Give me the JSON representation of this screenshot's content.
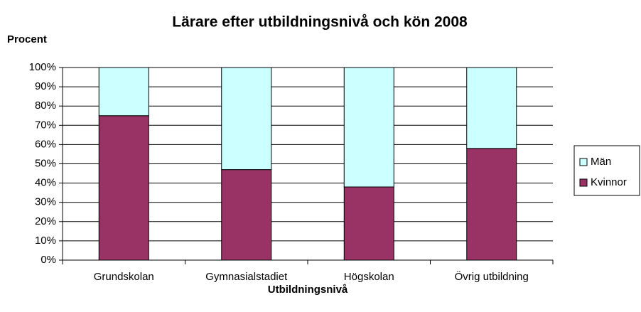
{
  "chart_data": {
    "type": "stacked_bar",
    "title": "Lärare efter utbildningsnivå och kön 2008",
    "y_label": "Procent",
    "x_label": "Utbildningsnivå",
    "categories": [
      "Grundskolan",
      "Gymnasialstadiet",
      "Högskolan",
      "Övrig utbildning"
    ],
    "series": [
      {
        "name": "Kvinnor",
        "color": "#993366",
        "values": [
          75,
          47,
          38,
          58
        ]
      },
      {
        "name": "Män",
        "color": "#ccffff",
        "values": [
          25,
          53,
          62,
          42
        ]
      }
    ],
    "ylim": [
      0,
      100
    ],
    "yticks": [
      {
        "value": 0,
        "label": "0%"
      },
      {
        "value": 10,
        "label": "10%"
      },
      {
        "value": 20,
        "label": "20%"
      },
      {
        "value": 30,
        "label": "30%"
      },
      {
        "value": 40,
        "label": "40%"
      },
      {
        "value": 50,
        "label": "50%"
      },
      {
        "value": 60,
        "label": "60%"
      },
      {
        "value": 70,
        "label": "70%"
      },
      {
        "value": 80,
        "label": "80%"
      },
      {
        "value": 90,
        "label": "90%"
      },
      {
        "value": 100,
        "label": "100%"
      }
    ],
    "grid": true,
    "legend": "right"
  }
}
